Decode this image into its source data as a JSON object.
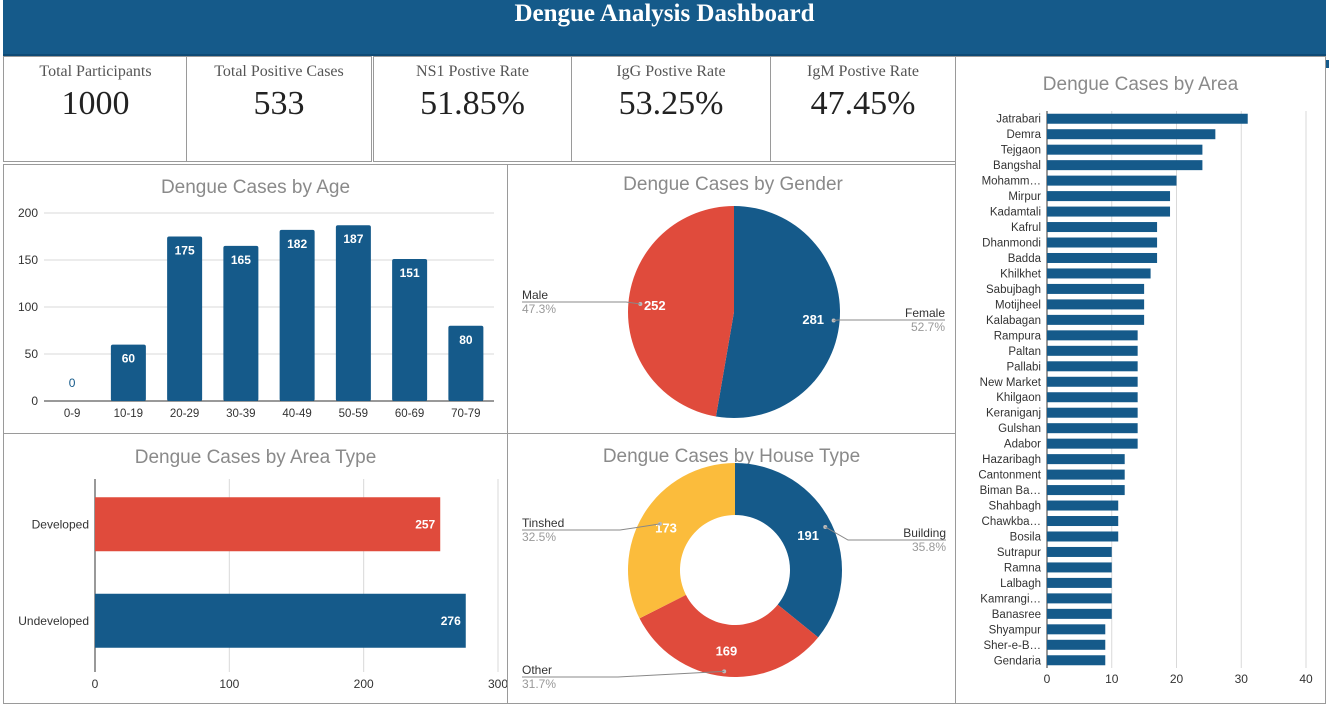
{
  "header": {
    "title": "Dengue Analysis Dashboard"
  },
  "kpis": [
    {
      "label": "Total Participants",
      "value": "1000"
    },
    {
      "label": "Total Positive Cases",
      "value": "533"
    },
    {
      "label": "NS1 Postive Rate",
      "value": "51.85%"
    },
    {
      "label": "IgG Postive Rate",
      "value": "53.25%"
    },
    {
      "label": "IgM Postive Rate",
      "value": "47.45%"
    }
  ],
  "colors": {
    "blue": "#155a8a",
    "red": "#e04b3c",
    "yellow": "#fbbc3c",
    "header": "#155a8a"
  },
  "chart_data": [
    {
      "id": "age",
      "type": "bar",
      "title": "Dengue Cases by Age",
      "categories": [
        "0-9",
        "10-19",
        "20-29",
        "30-39",
        "40-49",
        "50-59",
        "60-69",
        "70-79"
      ],
      "values": [
        0,
        60,
        175,
        165,
        182,
        187,
        151,
        80
      ],
      "ylim": [
        0,
        200
      ],
      "yticks": [
        0,
        50,
        100,
        150,
        200
      ],
      "grid": true
    },
    {
      "id": "gender",
      "type": "pie",
      "title": "Dengue Cases by Gender",
      "slices": [
        {
          "label": "Female",
          "value": 281,
          "percent": "52.7%"
        },
        {
          "label": "Male",
          "value": 252,
          "percent": "47.3%"
        }
      ]
    },
    {
      "id": "area_type",
      "type": "bar",
      "orientation": "horizontal",
      "title": "Dengue Cases by Area Type",
      "categories": [
        "Developed",
        "Undeveloped"
      ],
      "values": [
        257,
        276
      ],
      "xlim": [
        0,
        300
      ],
      "xticks": [
        0,
        100,
        200,
        300
      ],
      "grid": true
    },
    {
      "id": "house_type",
      "type": "pie",
      "donut": true,
      "title": "Dengue Cases by House Type",
      "slices": [
        {
          "label": "Building",
          "value": 191,
          "percent": "35.8%"
        },
        {
          "label": "Other",
          "value": 169,
          "percent": "31.7%"
        },
        {
          "label": "Tinshed",
          "value": 173,
          "percent": "32.5%"
        }
      ]
    },
    {
      "id": "area",
      "type": "bar",
      "orientation": "horizontal",
      "title": "Dengue Cases by Area",
      "categories": [
        "Jatrabari",
        "Demra",
        "Tejgaon",
        "Bangshal",
        "Mohamm…",
        "Mirpur",
        "Kadamtali",
        "Kafrul",
        "Dhanmondi",
        "Badda",
        "Khilkhet",
        "Sabujbagh",
        "Motijheel",
        "Kalabagan",
        "Rampura",
        "Paltan",
        "Pallabi",
        "New Market",
        "Khilgaon",
        "Keraniganj",
        "Gulshan",
        "Adabor",
        "Hazaribagh",
        "Cantonment",
        "Biman Ba…",
        "Shahbagh",
        "Chawkba…",
        "Bosila",
        "Sutrapur",
        "Ramna",
        "Lalbagh",
        "Kamrangi…",
        "Banasree",
        "Shyampur",
        "Sher-e-B…",
        "Gendaria"
      ],
      "values": [
        31,
        26,
        24,
        24,
        20,
        19,
        19,
        17,
        17,
        17,
        16,
        15,
        15,
        15,
        14,
        14,
        14,
        14,
        14,
        14,
        14,
        14,
        12,
        12,
        12,
        11,
        11,
        11,
        10,
        10,
        10,
        10,
        10,
        9,
        9,
        9
      ],
      "xlim": [
        0,
        40
      ],
      "xticks": [
        0,
        10,
        20,
        30,
        40
      ],
      "grid": true
    }
  ]
}
